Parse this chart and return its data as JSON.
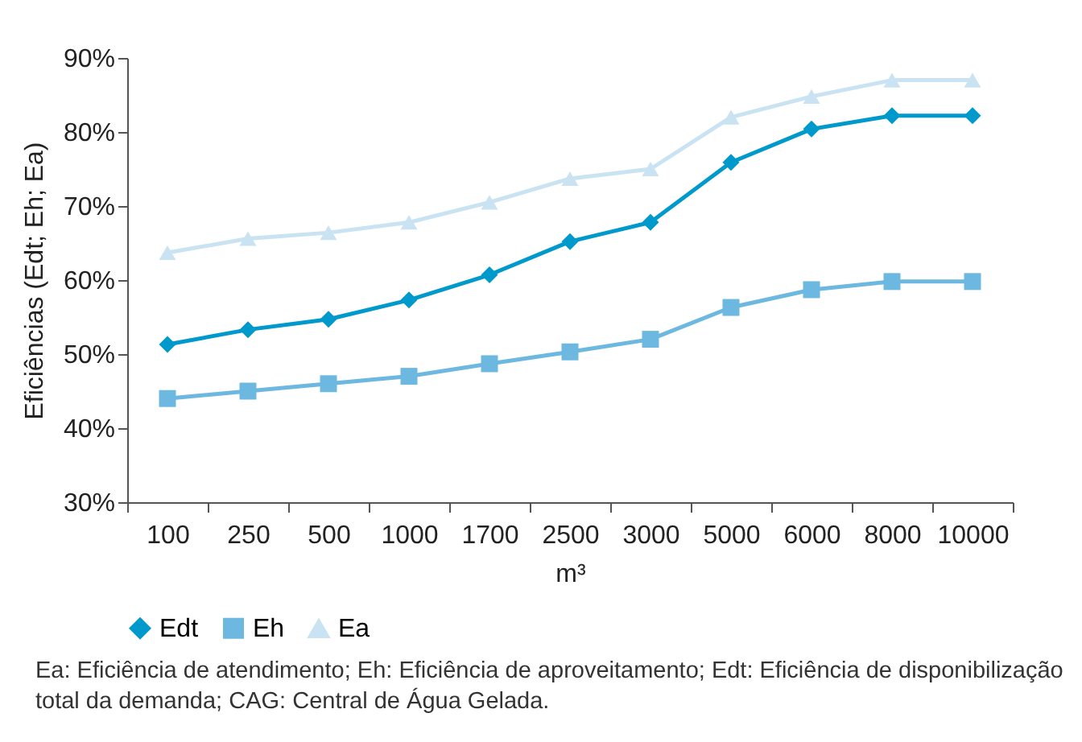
{
  "chart_data": {
    "type": "line",
    "xlabel": "m³",
    "ylabel": "Eficiências (Edt; Eh; Ea)",
    "categories": [
      "100",
      "250",
      "500",
      "1000",
      "1700",
      "2500",
      "3000",
      "5000",
      "6000",
      "8000",
      "10000"
    ],
    "series": [
      {
        "name": "Edt",
        "color": "#0099cc",
        "marker": "diamond",
        "values": [
          51.3,
          53.3,
          54.7,
          57.3,
          60.7,
          65.2,
          67.8,
          75.9,
          80.4,
          82.2,
          82.2
        ]
      },
      {
        "name": "Eh",
        "color": "#6cb8e0",
        "marker": "square",
        "values": [
          44,
          45,
          46,
          47,
          48.7,
          50.3,
          52,
          56.3,
          58.7,
          59.8,
          59.8
        ]
      },
      {
        "name": "Ea",
        "color": "#c9e3f3",
        "marker": "triangle",
        "values": [
          63.7,
          65.6,
          66.4,
          67.8,
          70.5,
          73.7,
          75,
          82,
          84.8,
          87,
          87
        ]
      }
    ],
    "ylim": [
      30,
      90
    ],
    "yticks": [
      {
        "value": 30,
        "label": "30%"
      },
      {
        "value": 40,
        "label": "40%"
      },
      {
        "value": 50,
        "label": "50%"
      },
      {
        "value": 60,
        "label": "60%"
      },
      {
        "value": 70,
        "label": "70%"
      },
      {
        "value": 80,
        "label": "80%"
      },
      {
        "value": 90,
        "label": "90%"
      }
    ],
    "grid": false,
    "legend": "bottom",
    "annotations": [
      "Ea: Eficiência de atendimento; Eh: Eficiência de aproveitamento; Edt: Eficiência de disponibilização total da demanda; CAG: Central de Água Gelada."
    ]
  }
}
